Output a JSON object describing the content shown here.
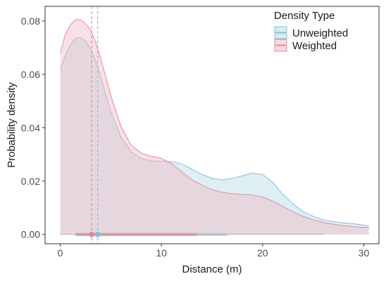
{
  "chart_data": {
    "type": "area",
    "xlabel": "Distance (m)",
    "ylabel": "Probability density",
    "xlim": [
      -1.5,
      31.5
    ],
    "ylim": [
      -0.0035,
      0.0855
    ],
    "x_ticks": [
      0,
      10,
      20,
      30
    ],
    "x_tick_labels": [
      "0",
      "10",
      "20",
      "30"
    ],
    "y_ticks": [
      0.0,
      0.02,
      0.04,
      0.06,
      0.08
    ],
    "y_tick_labels": [
      "0.00",
      "0.02",
      "0.04",
      "0.06",
      "0.08"
    ],
    "grid": false,
    "legend": {
      "title": "Density Type",
      "position": "top-right",
      "entries": [
        "Unweighted",
        "Weighted"
      ]
    },
    "series": [
      {
        "name": "Unweighted",
        "fill": "#add8e6",
        "line": "#8fbcd8",
        "x": [
          0,
          0.5,
          1,
          1.5,
          2,
          2.5,
          3,
          3.5,
          4,
          5,
          6,
          7,
          8,
          9,
          10,
          11,
          12,
          13,
          14,
          15,
          16,
          17,
          18,
          19,
          20,
          21,
          22,
          23,
          24,
          25,
          26,
          27,
          28,
          29,
          30,
          30.5
        ],
        "y": [
          0.062,
          0.067,
          0.071,
          0.0735,
          0.0738,
          0.0725,
          0.0695,
          0.065,
          0.059,
          0.046,
          0.0365,
          0.031,
          0.0285,
          0.0275,
          0.0275,
          0.0273,
          0.0265,
          0.0245,
          0.0225,
          0.021,
          0.0205,
          0.021,
          0.022,
          0.023,
          0.0225,
          0.0195,
          0.015,
          0.0115,
          0.0085,
          0.0068,
          0.0055,
          0.0048,
          0.0043,
          0.004,
          0.0035,
          0.0032
        ],
        "marker_x": 3.7,
        "interval": [
          1.5,
          16.5
        ]
      },
      {
        "name": "Weighted",
        "fill": "#f4b6c2",
        "line": "#e08d9c",
        "x": [
          0,
          0.5,
          1,
          1.5,
          2,
          2.5,
          3,
          3.5,
          4,
          5,
          6,
          7,
          8,
          9,
          10,
          11,
          12,
          13,
          14,
          15,
          16,
          17,
          18,
          19,
          20,
          21,
          22,
          23,
          24,
          25,
          26,
          27,
          28,
          29,
          30,
          30.5
        ],
        "y": [
          0.068,
          0.075,
          0.0785,
          0.0805,
          0.0805,
          0.079,
          0.0765,
          0.072,
          0.066,
          0.052,
          0.0405,
          0.0335,
          0.0305,
          0.0293,
          0.0285,
          0.0265,
          0.0235,
          0.0205,
          0.0185,
          0.0168,
          0.0158,
          0.0153,
          0.015,
          0.0148,
          0.014,
          0.0125,
          0.0105,
          0.0085,
          0.0068,
          0.0055,
          0.0045,
          0.0038,
          0.0033,
          0.0029,
          0.0027,
          0.0026
        ],
        "marker_x": 3.1,
        "interval": [
          1.5,
          13.5
        ]
      }
    ]
  }
}
